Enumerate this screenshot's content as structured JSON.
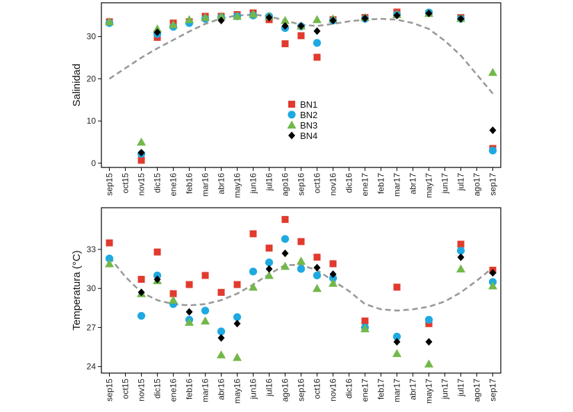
{
  "chart_data": {
    "type": "scatter",
    "categories": [
      "sep15",
      "oct15",
      "nov15",
      "dic15",
      "ene16",
      "feb16",
      "mar16",
      "abr16",
      "may16",
      "jun16",
      "jul16",
      "ago16",
      "sep16",
      "oct16",
      "nov16",
      "dic16",
      "ene17",
      "feb17",
      "mar17",
      "abr17",
      "may17",
      "jun17",
      "jul17",
      "ago17",
      "sep17"
    ],
    "legend_position": "inside-center",
    "colors": {
      "BN1": "#e03b2e",
      "BN2": "#1ea9e1",
      "BN3": "#72b84a",
      "BN4": "#000000",
      "curve": "#999999"
    },
    "markers": {
      "BN1": "square",
      "BN2": "circle",
      "BN3": "triangle",
      "BN4": "diamond"
    },
    "panels": [
      {
        "id": "salinity",
        "ylabel": "Salinidad",
        "ylim": [
          -1,
          38
        ],
        "yticks": [
          0,
          10,
          20,
          30
        ],
        "show_legend": true,
        "series": [
          {
            "name": "BN1",
            "values": [
              33.5,
              null,
              0.7,
              29.8,
              33.2,
              33.5,
              34.8,
              34.8,
              35.2,
              35.6,
              34.0,
              28.3,
              30.2,
              25.1,
              34.0,
              null,
              34.5,
              null,
              35.8,
              null,
              35.5,
              null,
              34.5,
              null,
              3.5
            ]
          },
          {
            "name": "BN2",
            "values": [
              33.2,
              null,
              2.2,
              30.6,
              32.3,
              33.2,
              34.2,
              34.5,
              34.8,
              35.0,
              34.8,
              32.0,
              32.4,
              28.5,
              33.8,
              null,
              34.2,
              null,
              35.2,
              null,
              35.7,
              null,
              34.2,
              null,
              3.0
            ]
          },
          {
            "name": "BN3",
            "values": [
              33.5,
              null,
              5.0,
              31.8,
              32.8,
              34.0,
              34.5,
              34.8,
              34.8,
              35.3,
              34.8,
              33.8,
              32.5,
              34.0,
              34.2,
              null,
              34.5,
              null,
              35.2,
              null,
              35.5,
              null,
              34.3,
              null,
              21.5
            ]
          },
          {
            "name": "BN4",
            "values": [
              null,
              null,
              2.5,
              31.0,
              null,
              null,
              null,
              33.8,
              null,
              null,
              34.5,
              32.5,
              32.5,
              31.3,
              33.8,
              null,
              34.3,
              null,
              35.0,
              null,
              35.5,
              null,
              34.2,
              null,
              7.8
            ]
          }
        ],
        "curve": [
          20.0,
          22.5,
          25.0,
          27.2,
          29.2,
          31.2,
          33.0,
          34.3,
          35.0,
          35.2,
          34.8,
          33.8,
          32.8,
          32.5,
          33.0,
          33.6,
          34.0,
          34.2,
          34.0,
          33.2,
          31.8,
          29.0,
          25.5,
          21.0,
          16.5
        ]
      },
      {
        "id": "temperature",
        "ylabel": "Temperatura (°C)",
        "ylim": [
          23.5,
          36.2
        ],
        "yticks": [
          24,
          27,
          30,
          33
        ],
        "show_legend": false,
        "series": [
          {
            "name": "BN1",
            "values": [
              33.5,
              null,
              30.7,
              32.8,
              29.6,
              30.3,
              31.0,
              29.7,
              30.3,
              34.2,
              33.1,
              35.3,
              33.6,
              32.4,
              31.9,
              null,
              27.5,
              null,
              30.1,
              null,
              27.3,
              null,
              33.4,
              null,
              31.4
            ]
          },
          {
            "name": "BN2",
            "values": [
              32.3,
              null,
              27.9,
              31.0,
              28.8,
              27.6,
              28.3,
              26.7,
              27.8,
              31.3,
              32.0,
              33.8,
              31.5,
              31.0,
              30.8,
              null,
              27.0,
              null,
              26.3,
              null,
              27.6,
              null,
              32.9,
              null,
              30.5
            ]
          },
          {
            "name": "BN3",
            "values": [
              31.9,
              null,
              29.6,
              30.6,
              29.1,
              27.4,
              27.5,
              24.9,
              24.7,
              30.1,
              31.0,
              31.7,
              32.1,
              30.0,
              30.4,
              null,
              26.9,
              null,
              25.0,
              null,
              24.2,
              null,
              31.5,
              null,
              30.2
            ]
          },
          {
            "name": "BN4",
            "values": [
              null,
              null,
              29.7,
              30.7,
              null,
              28.2,
              null,
              26.2,
              27.3,
              null,
              31.5,
              32.7,
              null,
              31.6,
              31.1,
              null,
              null,
              null,
              25.9,
              null,
              25.9,
              null,
              32.4,
              null,
              31.2
            ]
          }
        ],
        "curve": [
          32.4,
          30.9,
          29.7,
          29.1,
          28.8,
          28.7,
          28.8,
          29.1,
          29.6,
          30.3,
          31.1,
          31.8,
          31.8,
          31.4,
          30.6,
          29.8,
          28.8,
          28.4,
          28.3,
          28.4,
          28.6,
          29.0,
          29.7,
          30.6,
          31.6
        ]
      }
    ]
  }
}
